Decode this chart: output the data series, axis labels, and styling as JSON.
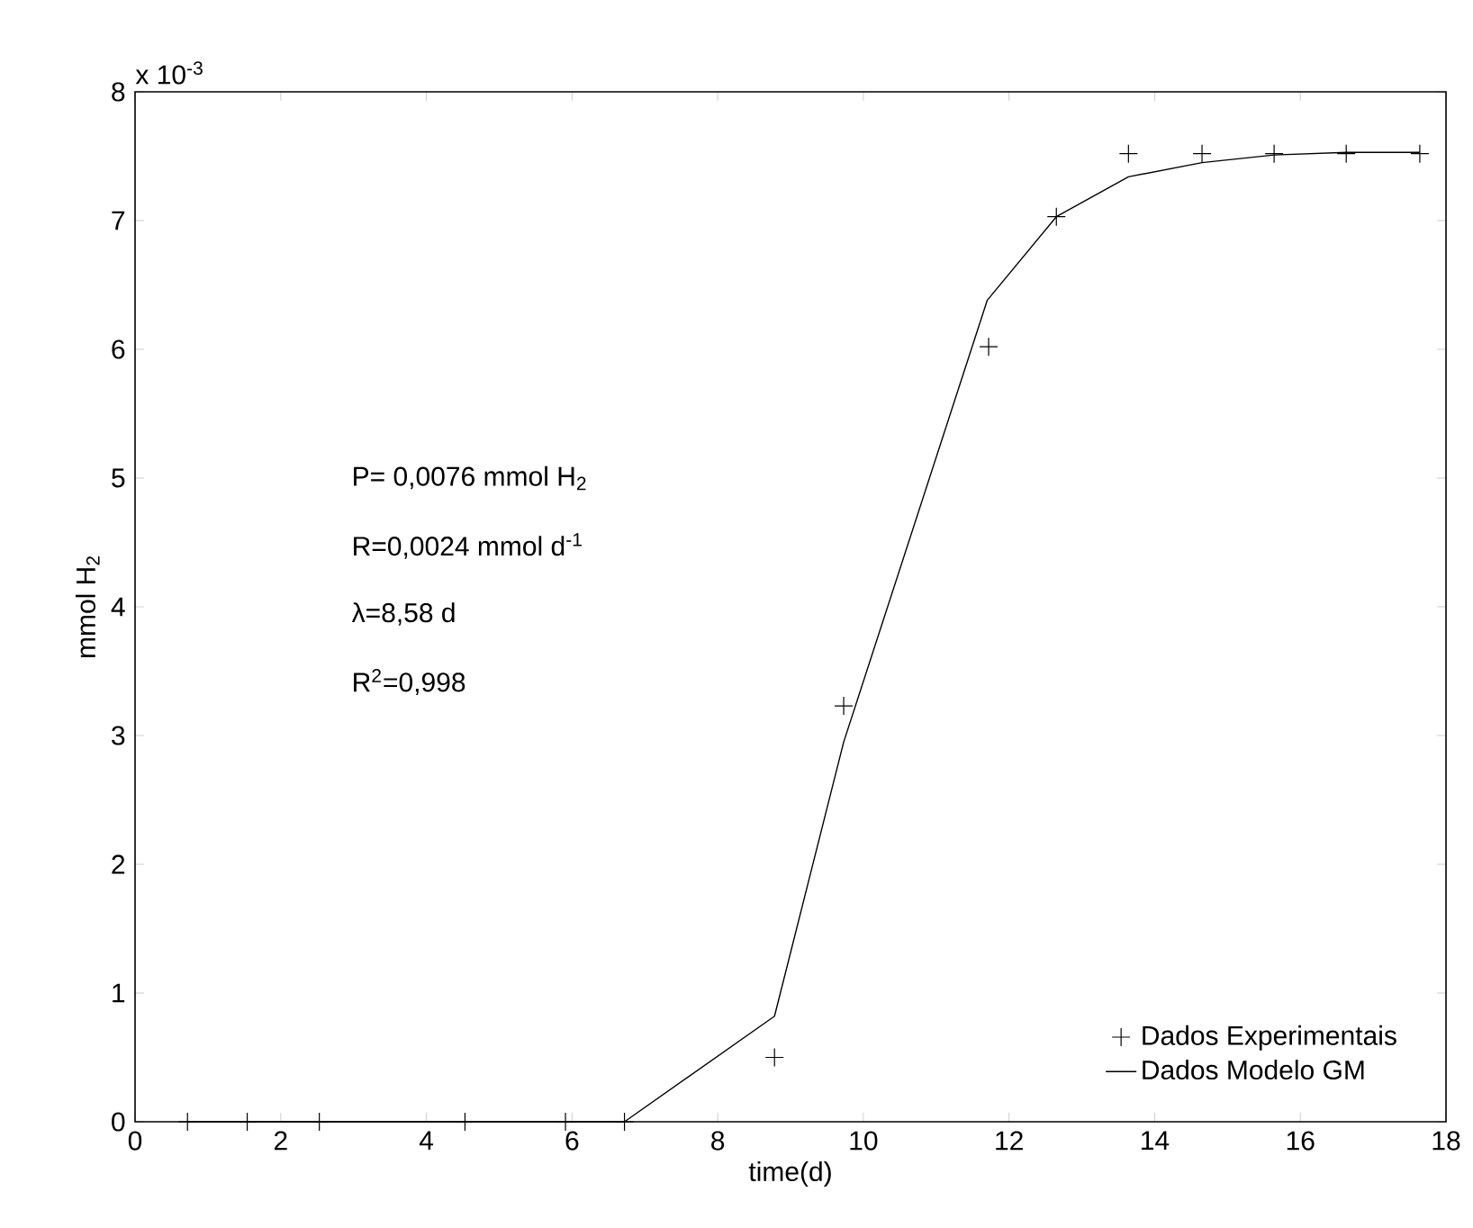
{
  "chart_data": {
    "type": "scatter",
    "xlabel": "time(d)",
    "ylabel": "mmol H$_{2}$",
    "xlim": [
      0,
      18
    ],
    "ylim": [
      0,
      8
    ],
    "xticks": [
      0,
      2,
      4,
      6,
      8,
      10,
      12,
      14,
      16,
      18
    ],
    "yticks": [
      0,
      1,
      2,
      3,
      4,
      5,
      6,
      7,
      8
    ],
    "legend": "bottom right",
    "annotations": [
      "x 10$^{-3}$",
      "P= 0,0076 mmol H$_{2}$",
      "R=0,0024 mmol d$^{-1}$",
      "λ=8,58 d",
      "R$^{2}$=0,998"
    ],
    "series": [
      {
        "name": "Dados Experimentais",
        "marker": "cross",
        "color": "#000000",
        "x": [
          0.72,
          1.54,
          2.53,
          4.53,
          5.91,
          6.72,
          8.78,
          9.73,
          11.72,
          12.65,
          13.64,
          14.65,
          15.64,
          16.63,
          17.64
        ],
        "values": [
          0,
          0,
          0,
          0,
          0,
          0,
          0.5,
          3.23,
          6.02,
          7.03,
          7.52,
          7.52,
          7.52,
          7.52,
          7.52
        ]
      },
      {
        "name": "Dados Modelo GM",
        "type": "line",
        "line_style": "solid",
        "marker": "none",
        "color": "#000000",
        "x": [
          0.72,
          1.54,
          2.53,
          4.53,
          5.91,
          6.72,
          8.78,
          9.73,
          11.7,
          12.65,
          13.64,
          14.65,
          15.64,
          16.63,
          17.64
        ],
        "values": [
          0,
          0,
          0,
          0,
          0,
          0,
          0.82,
          2.95,
          6.38,
          7.03,
          7.34,
          7.45,
          7.51,
          7.53,
          7.53
        ]
      }
    ]
  }
}
